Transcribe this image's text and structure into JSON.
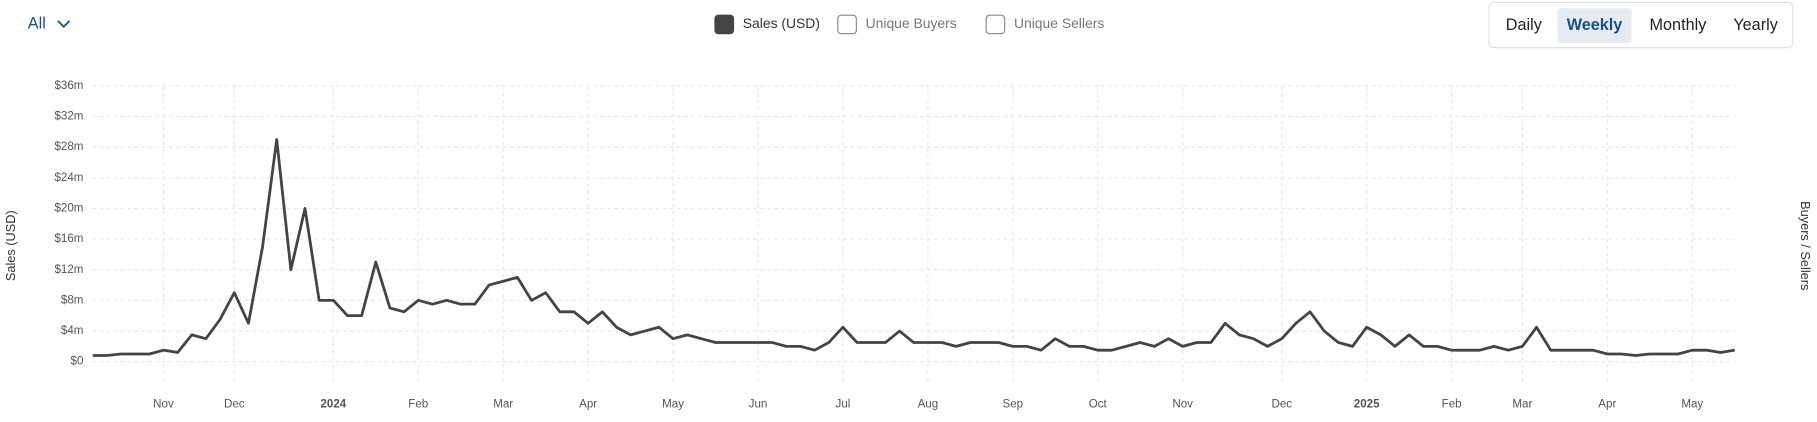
{
  "controls": {
    "filter": "All",
    "periods": [
      "Daily",
      "Weekly",
      "Monthly",
      "Yearly"
    ],
    "selected_period": "Weekly"
  },
  "chart_data": {
    "type": "line",
    "y_label": "Sales (USD)",
    "y2_label": "Buyers / Sellers",
    "categories": [
      null,
      null,
      null,
      null,
      null,
      "Nov",
      null,
      null,
      null,
      null,
      "Dec",
      null,
      null,
      null,
      null,
      null,
      null,
      "2024",
      null,
      null,
      null,
      null,
      null,
      "Feb",
      null,
      null,
      null,
      null,
      null,
      "Mar",
      null,
      null,
      null,
      null,
      null,
      "Apr",
      null,
      null,
      null,
      null,
      null,
      "May",
      null,
      null,
      null,
      null,
      null,
      "Jun",
      null,
      null,
      null,
      null,
      null,
      "Jul",
      null,
      null,
      null,
      null,
      null,
      "Aug",
      null,
      null,
      null,
      null,
      null,
      "Sep",
      null,
      null,
      null,
      null,
      null,
      "Oct",
      null,
      null,
      null,
      null,
      null,
      "Nov",
      null,
      null,
      null,
      null,
      null,
      null,
      "Dec",
      null,
      null,
      null,
      null,
      null,
      "2025",
      null,
      null,
      null,
      null,
      null,
      "Feb",
      null,
      null,
      null,
      null,
      "Mar",
      null,
      null,
      null,
      null,
      null,
      "Apr",
      null,
      null,
      null,
      null,
      null,
      "May",
      null,
      null,
      null
    ],
    "series": [
      {
        "name": "Sales (USD)",
        "color": "#444444",
        "values": [
          800000,
          800000,
          1000000,
          1000000,
          1000000,
          1500000,
          1200000,
          3500000,
          3000000,
          5500000,
          9000000,
          5000000,
          15000000,
          29000000,
          12000000,
          20000000,
          8000000,
          8000000,
          6000000,
          6000000,
          13000000,
          7000000,
          6500000,
          8000000,
          7500000,
          8000000,
          7500000,
          7500000,
          10000000,
          10500000,
          11000000,
          8000000,
          9000000,
          6500000,
          6500000,
          5000000,
          6500000,
          4500000,
          3500000,
          4000000,
          4500000,
          3000000,
          3500000,
          3000000,
          2500000,
          2500000,
          2500000,
          2500000,
          2500000,
          2000000,
          2000000,
          1500000,
          2500000,
          4500000,
          2500000,
          2500000,
          2500000,
          4000000,
          2500000,
          2500000,
          2500000,
          2000000,
          2500000,
          2500000,
          2500000,
          2000000,
          2000000,
          1500000,
          3000000,
          2000000,
          2000000,
          1500000,
          1500000,
          2000000,
          2500000,
          2000000,
          3000000,
          2000000,
          2500000,
          2500000,
          5000000,
          3500000,
          3000000,
          2000000,
          3000000,
          5000000,
          6500000,
          4000000,
          2500000,
          2000000,
          4500000,
          3500000,
          2000000,
          3500000,
          2000000,
          2000000,
          1500000,
          1500000,
          1500000,
          2000000,
          1500000,
          2000000,
          4500000,
          1500000,
          1500000,
          1500000,
          1500000,
          1000000,
          1000000,
          800000,
          1000000,
          1000000,
          1000000,
          1500000,
          1500000,
          1200000,
          1500000
        ]
      }
    ],
    "inactive_series": [
      "Unique Buyers",
      "Unique Sellers"
    ],
    "ylim": [
      0,
      36000000
    ],
    "yticks": [
      {
        "value": 0,
        "label": "$0"
      },
      {
        "value": 4000000,
        "label": "$4m"
      },
      {
        "value": 8000000,
        "label": "$8m"
      },
      {
        "value": 12000000,
        "label": "$12m"
      },
      {
        "value": 16000000,
        "label": "$16m"
      },
      {
        "value": 20000000,
        "label": "$20m"
      },
      {
        "value": 24000000,
        "label": "$24m"
      },
      {
        "value": 28000000,
        "label": "$28m"
      },
      {
        "value": 32000000,
        "label": "$32m"
      },
      {
        "value": 36000000,
        "label": "$36m"
      }
    ],
    "grid": true
  }
}
